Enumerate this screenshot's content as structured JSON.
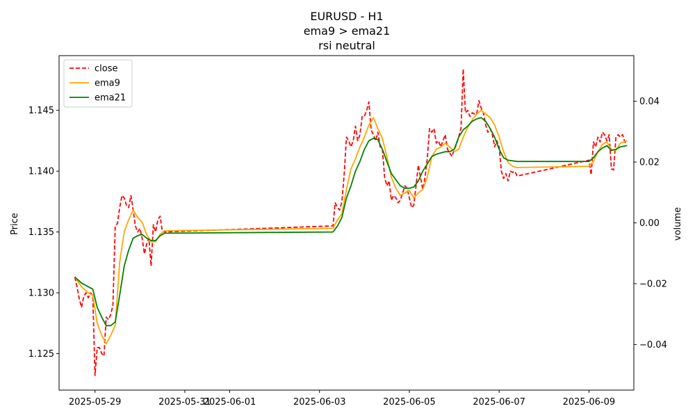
{
  "chart_data": {
    "type": "line",
    "title_lines": [
      "EURUSD - H1",
      "ema9 > ema21",
      "rsi neutral"
    ],
    "ylabel": "Price",
    "y2label": "volume",
    "x_range": [
      -0.8,
      12.0
    ],
    "ylim": [
      1.122,
      1.1495
    ],
    "y2lim": [
      -0.055,
      0.055
    ],
    "x_ticks": [
      {
        "x": 0,
        "label": "2025-05-29"
      },
      {
        "x": 2,
        "label": "2025-05-31"
      },
      {
        "x": 3,
        "label": "2025-06-01"
      },
      {
        "x": 5,
        "label": "2025-06-03"
      },
      {
        "x": 7,
        "label": "2025-06-05"
      },
      {
        "x": 9,
        "label": "2025-06-07"
      },
      {
        "x": 11,
        "label": "2025-06-09"
      }
    ],
    "y_ticks": [
      1.125,
      1.13,
      1.135,
      1.14,
      1.145
    ],
    "y2_ticks": [
      -0.04,
      -0.02,
      0.0,
      0.02,
      0.04
    ],
    "legend": [
      "close",
      "ema9",
      "ema21"
    ],
    "series": [
      {
        "name": "close",
        "color": "#ff0000",
        "dashed": true,
        "points": [
          [
            -0.45,
            1.1313
          ],
          [
            -0.4,
            1.1305
          ],
          [
            -0.35,
            1.1295
          ],
          [
            -0.3,
            1.1288
          ],
          [
            -0.25,
            1.1297
          ],
          [
            -0.2,
            1.13
          ],
          [
            -0.15,
            1.1296
          ],
          [
            -0.1,
            1.13
          ],
          [
            -0.05,
            1.1298
          ],
          [
            0.0,
            1.1232
          ],
          [
            0.05,
            1.1255
          ],
          [
            0.1,
            1.1255
          ],
          [
            0.15,
            1.125
          ],
          [
            0.2,
            1.1248
          ],
          [
            0.25,
            1.128
          ],
          [
            0.3,
            1.1278
          ],
          [
            0.35,
            1.1282
          ],
          [
            0.4,
            1.129
          ],
          [
            0.45,
            1.1355
          ],
          [
            0.5,
            1.1357
          ],
          [
            0.55,
            1.137
          ],
          [
            0.6,
            1.138
          ],
          [
            0.65,
            1.1378
          ],
          [
            0.7,
            1.1372
          ],
          [
            0.75,
            1.137
          ],
          [
            0.8,
            1.138
          ],
          [
            0.85,
            1.1368
          ],
          [
            0.9,
            1.1355
          ],
          [
            0.95,
            1.135
          ],
          [
            1.0,
            1.1353
          ],
          [
            1.05,
            1.1345
          ],
          [
            1.1,
            1.1332
          ],
          [
            1.15,
            1.134
          ],
          [
            1.2,
            1.1345
          ],
          [
            1.25,
            1.1322
          ],
          [
            1.3,
            1.1356
          ],
          [
            1.35,
            1.135
          ],
          [
            1.4,
            1.136
          ],
          [
            1.45,
            1.1363
          ],
          [
            1.5,
            1.135
          ],
          [
            5.3,
            1.1355
          ],
          [
            5.35,
            1.1374
          ],
          [
            5.4,
            1.137
          ],
          [
            5.45,
            1.1368
          ],
          [
            5.5,
            1.1375
          ],
          [
            5.55,
            1.1398
          ],
          [
            5.6,
            1.1428
          ],
          [
            5.65,
            1.1425
          ],
          [
            5.7,
            1.142
          ],
          [
            5.75,
            1.1425
          ],
          [
            5.8,
            1.1437
          ],
          [
            5.85,
            1.1425
          ],
          [
            5.9,
            1.143
          ],
          [
            5.95,
            1.1445
          ],
          [
            6.0,
            1.1445
          ],
          [
            6.05,
            1.145
          ],
          [
            6.1,
            1.1457
          ],
          [
            6.15,
            1.1434
          ],
          [
            6.2,
            1.143
          ],
          [
            6.25,
            1.1425
          ],
          [
            6.3,
            1.1432
          ],
          [
            6.35,
            1.142
          ],
          [
            6.4,
            1.1418
          ],
          [
            6.45,
            1.1395
          ],
          [
            6.5,
            1.1388
          ],
          [
            6.55,
            1.1392
          ],
          [
            6.6,
            1.1376
          ],
          [
            6.65,
            1.138
          ],
          [
            6.7,
            1.1378
          ],
          [
            6.75,
            1.1374
          ],
          [
            6.8,
            1.1376
          ],
          [
            6.85,
            1.1382
          ],
          [
            6.9,
            1.1388
          ],
          [
            6.95,
            1.1386
          ],
          [
            7.0,
            1.1378
          ],
          [
            7.05,
            1.137
          ],
          [
            7.1,
            1.1372
          ],
          [
            7.15,
            1.1388
          ],
          [
            7.2,
            1.1405
          ],
          [
            7.25,
            1.1395
          ],
          [
            7.3,
            1.1385
          ],
          [
            7.35,
            1.1395
          ],
          [
            7.4,
            1.141
          ],
          [
            7.45,
            1.1435
          ],
          [
            7.5,
            1.1432
          ],
          [
            7.55,
            1.1435
          ],
          [
            7.6,
            1.1423
          ],
          [
            7.65,
            1.1425
          ],
          [
            7.7,
            1.142
          ],
          [
            7.75,
            1.1425
          ],
          [
            7.8,
            1.143
          ],
          [
            7.85,
            1.1418
          ],
          [
            7.9,
            1.1415
          ],
          [
            7.95,
            1.1412
          ],
          [
            8.0,
            1.1418
          ],
          [
            8.05,
            1.1422
          ],
          [
            8.1,
            1.1428
          ],
          [
            8.15,
            1.1435
          ],
          [
            8.2,
            1.1484
          ],
          [
            8.25,
            1.1448
          ],
          [
            8.3,
            1.145
          ],
          [
            8.35,
            1.1445
          ],
          [
            8.4,
            1.1448
          ],
          [
            8.45,
            1.1447
          ],
          [
            8.5,
            1.1447
          ],
          [
            8.55,
            1.1458
          ],
          [
            8.6,
            1.1452
          ],
          [
            8.65,
            1.1448
          ],
          [
            8.7,
            1.1438
          ],
          [
            8.75,
            1.1432
          ],
          [
            8.8,
            1.1435
          ],
          [
            8.85,
            1.143
          ],
          [
            8.9,
            1.142
          ],
          [
            8.95,
            1.1425
          ],
          [
            9.0,
            1.142
          ],
          [
            9.05,
            1.14
          ],
          [
            9.1,
            1.1394
          ],
          [
            9.15,
            1.1398
          ],
          [
            9.2,
            1.1392
          ],
          [
            9.25,
            1.14
          ],
          [
            9.3,
            1.1399
          ],
          [
            9.35,
            1.14
          ],
          [
            9.4,
            1.1396
          ],
          [
            11.0,
            1.1409
          ],
          [
            11.05,
            1.1397
          ],
          [
            11.1,
            1.1424
          ],
          [
            11.15,
            1.142
          ],
          [
            11.2,
            1.1428
          ],
          [
            11.25,
            1.1424
          ],
          [
            11.3,
            1.1432
          ],
          [
            11.35,
            1.143
          ],
          [
            11.4,
            1.1425
          ],
          [
            11.45,
            1.143
          ],
          [
            11.5,
            1.1402
          ],
          [
            11.55,
            1.1401
          ],
          [
            11.6,
            1.1428
          ],
          [
            11.65,
            1.143
          ],
          [
            11.7,
            1.1428
          ],
          [
            11.75,
            1.143
          ],
          [
            11.8,
            1.1424
          ],
          [
            11.85,
            1.1422
          ]
        ]
      },
      {
        "name": "ema9",
        "color": "#ffa500",
        "dashed": false,
        "points": [
          [
            -0.45,
            1.1313
          ],
          [
            -0.3,
            1.1305
          ],
          [
            -0.15,
            1.13
          ],
          [
            -0.05,
            1.1298
          ],
          [
            0.05,
            1.1275
          ],
          [
            0.15,
            1.1265
          ],
          [
            0.25,
            1.1258
          ],
          [
            0.35,
            1.1265
          ],
          [
            0.45,
            1.1273
          ],
          [
            0.55,
            1.1325
          ],
          [
            0.65,
            1.135
          ],
          [
            0.75,
            1.136
          ],
          [
            0.85,
            1.1368
          ],
          [
            0.95,
            1.1362
          ],
          [
            1.05,
            1.1358
          ],
          [
            1.15,
            1.1348
          ],
          [
            1.25,
            1.1342
          ],
          [
            1.35,
            1.1342
          ],
          [
            1.45,
            1.1348
          ],
          [
            1.55,
            1.1351
          ],
          [
            5.3,
            1.1353
          ],
          [
            5.4,
            1.136
          ],
          [
            5.5,
            1.1365
          ],
          [
            5.6,
            1.1385
          ],
          [
            5.7,
            1.1402
          ],
          [
            5.8,
            1.141
          ],
          [
            5.9,
            1.142
          ],
          [
            6.0,
            1.1428
          ],
          [
            6.1,
            1.1438
          ],
          [
            6.2,
            1.1444
          ],
          [
            6.3,
            1.1435
          ],
          [
            6.4,
            1.1427
          ],
          [
            6.5,
            1.1412
          ],
          [
            6.6,
            1.1395
          ],
          [
            6.7,
            1.1386
          ],
          [
            6.8,
            1.138
          ],
          [
            6.9,
            1.1382
          ],
          [
            7.0,
            1.1384
          ],
          [
            7.1,
            1.1378
          ],
          [
            7.2,
            1.1382
          ],
          [
            7.3,
            1.1385
          ],
          [
            7.4,
            1.1395
          ],
          [
            7.5,
            1.1412
          ],
          [
            7.6,
            1.1418
          ],
          [
            7.7,
            1.142
          ],
          [
            7.8,
            1.1423
          ],
          [
            7.9,
            1.142
          ],
          [
            8.0,
            1.1416
          ],
          [
            8.1,
            1.1418
          ],
          [
            8.2,
            1.1428
          ],
          [
            8.3,
            1.1436
          ],
          [
            8.4,
            1.1442
          ],
          [
            8.5,
            1.1447
          ],
          [
            8.6,
            1.145
          ],
          [
            8.7,
            1.1447
          ],
          [
            8.8,
            1.1444
          ],
          [
            8.9,
            1.1438
          ],
          [
            9.0,
            1.1428
          ],
          [
            9.1,
            1.1416
          ],
          [
            9.2,
            1.1407
          ],
          [
            9.3,
            1.1404
          ],
          [
            9.4,
            1.1403
          ],
          [
            11.0,
            1.1404
          ],
          [
            11.1,
            1.1408
          ],
          [
            11.2,
            1.1416
          ],
          [
            11.3,
            1.1422
          ],
          [
            11.4,
            1.1424
          ],
          [
            11.5,
            1.1418
          ],
          [
            11.6,
            1.1417
          ],
          [
            11.7,
            1.1423
          ],
          [
            11.85,
            1.1425
          ]
        ]
      },
      {
        "name": "ema21",
        "color": "#008000",
        "dashed": false,
        "points": [
          [
            -0.45,
            1.1313
          ],
          [
            -0.3,
            1.1308
          ],
          [
            -0.15,
            1.1305
          ],
          [
            -0.05,
            1.1303
          ],
          [
            0.05,
            1.1288
          ],
          [
            0.15,
            1.128
          ],
          [
            0.25,
            1.1273
          ],
          [
            0.35,
            1.1273
          ],
          [
            0.45,
            1.1276
          ],
          [
            0.55,
            1.1298
          ],
          [
            0.65,
            1.1322
          ],
          [
            0.75,
            1.1335
          ],
          [
            0.85,
            1.1345
          ],
          [
            0.95,
            1.1347
          ],
          [
            1.05,
            1.1348
          ],
          [
            1.15,
            1.1345
          ],
          [
            1.25,
            1.1343
          ],
          [
            1.35,
            1.1343
          ],
          [
            1.45,
            1.1347
          ],
          [
            1.55,
            1.1349
          ],
          [
            5.3,
            1.135
          ],
          [
            5.4,
            1.1355
          ],
          [
            5.5,
            1.1362
          ],
          [
            5.6,
            1.1378
          ],
          [
            5.7,
            1.1388
          ],
          [
            5.8,
            1.14
          ],
          [
            5.9,
            1.1408
          ],
          [
            6.0,
            1.1418
          ],
          [
            6.1,
            1.1425
          ],
          [
            6.2,
            1.1427
          ],
          [
            6.3,
            1.1426
          ],
          [
            6.4,
            1.1418
          ],
          [
            6.5,
            1.1408
          ],
          [
            6.6,
            1.1398
          ],
          [
            6.7,
            1.1393
          ],
          [
            6.8,
            1.1388
          ],
          [
            6.9,
            1.1386
          ],
          [
            7.0,
            1.1386
          ],
          [
            7.1,
            1.1387
          ],
          [
            7.2,
            1.1392
          ],
          [
            7.3,
            1.14
          ],
          [
            7.4,
            1.1406
          ],
          [
            7.5,
            1.1412
          ],
          [
            7.6,
            1.1414
          ],
          [
            7.7,
            1.1415
          ],
          [
            7.8,
            1.1416
          ],
          [
            7.9,
            1.1416
          ],
          [
            8.0,
            1.1418
          ],
          [
            8.1,
            1.1428
          ],
          [
            8.2,
            1.1434
          ],
          [
            8.3,
            1.1437
          ],
          [
            8.4,
            1.1441
          ],
          [
            8.5,
            1.1443
          ],
          [
            8.6,
            1.1444
          ],
          [
            8.7,
            1.1441
          ],
          [
            8.8,
            1.1435
          ],
          [
            8.9,
            1.1428
          ],
          [
            9.0,
            1.1418
          ],
          [
            9.1,
            1.1411
          ],
          [
            9.2,
            1.1409
          ],
          [
            9.4,
            1.1408
          ],
          [
            11.0,
            1.1408
          ],
          [
            11.1,
            1.1411
          ],
          [
            11.2,
            1.1416
          ],
          [
            11.3,
            1.1419
          ],
          [
            11.4,
            1.1421
          ],
          [
            11.5,
            1.1417
          ],
          [
            11.6,
            1.1418
          ],
          [
            11.7,
            1.142
          ],
          [
            11.85,
            1.1421
          ]
        ]
      }
    ]
  }
}
